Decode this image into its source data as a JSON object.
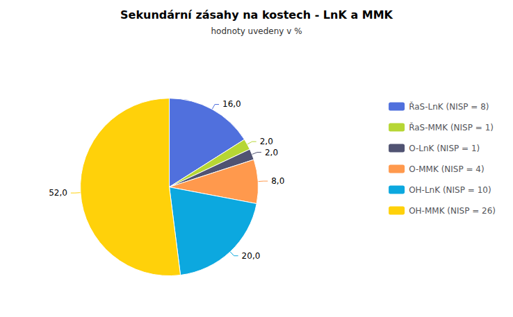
{
  "chart_data": {
    "type": "pie",
    "title": "Sekundární zásahy na kostech - LnK a MMK",
    "subtitle": "hodnoty uvedeny v %",
    "categories": [
      "ŘaS-LnK (NISP = 8)",
      "ŘaS-MMK (NISP = 1)",
      "O-LnK (NISP = 1)",
      "O-MMK (NISP = 4)",
      "OH-LnK (NISP = 10)",
      "OH-MMK (NISP = 26)"
    ],
    "values": [
      16.0,
      2.0,
      2.0,
      8.0,
      20.0,
      52.0
    ],
    "value_labels": [
      "16,0",
      "2,0",
      "2,0",
      "8,0",
      "20,0",
      "52,0"
    ],
    "data_labels": true,
    "legend": "right"
  }
}
